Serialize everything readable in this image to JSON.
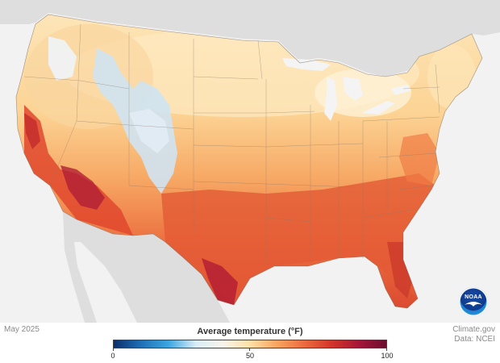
{
  "footer": {
    "date": "May 2025",
    "source_site": "Climate.gov",
    "source_data": "Data: NCEI"
  },
  "logo": {
    "text": "NOAA"
  },
  "legend": {
    "title": "Average temperature (°F)",
    "ticks": [
      "0",
      "50",
      "100"
    ],
    "min": 0,
    "max": 100,
    "colors": [
      "#0b2f6b",
      "#1f6fb6",
      "#3aa6e0",
      "#d8ecf7",
      "#f8f4ea",
      "#fde0a6",
      "#f7a45f",
      "#ec6a3f",
      "#d23428",
      "#a51538",
      "#6b0e30"
    ]
  },
  "map_colors": {
    "land_cool": "#fbe3b0",
    "land_mild": "#fcc98a",
    "land_warm": "#f6a061",
    "land_hot": "#ea6a3a",
    "land_very_hot": "#d8432d",
    "land_extreme": "#b01f35",
    "mountain_cold": "#d6e8f4",
    "mountain_cool": "#f3f2ee",
    "background": "#f2f2f2",
    "neighbor_land": "#dedede",
    "water": "#f4f4f4"
  }
}
